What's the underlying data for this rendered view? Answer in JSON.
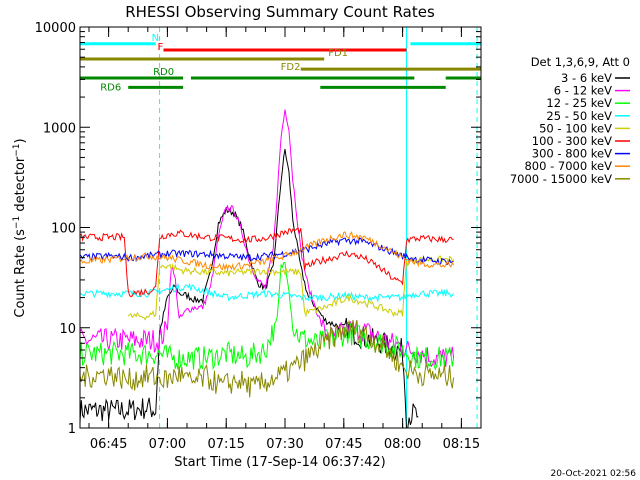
{
  "chart_data": {
    "type": "line",
    "title": "RHESSI Observing Summary Count Rates",
    "xlabel": "Start Time (17-Sep-14 06:37:42)",
    "ylabel": "Count Rate (s⁻¹ detector⁻¹)",
    "ylabel_parts": [
      "Count Rate (s",
      "−1",
      " detector",
      "−1",
      ")"
    ],
    "xaxis": {
      "ticks": [
        {
          "t": 45,
          "label": "06:45"
        },
        {
          "t": 60,
          "label": "07:00"
        },
        {
          "t": 75,
          "label": "07:15"
        },
        {
          "t": 90,
          "label": "07:30"
        },
        {
          "t": 105,
          "label": "07:45"
        },
        {
          "t": 120,
          "label": "08:00"
        },
        {
          "t": 135,
          "label": "08:15"
        }
      ],
      "range": [
        37.7,
        140
      ]
    },
    "yaxis": {
      "scale": "log",
      "range": [
        1,
        10000
      ],
      "ticks": [
        {
          "v": 1,
          "label": "1"
        },
        {
          "v": 10,
          "label": "10"
        },
        {
          "v": 100,
          "label": "100"
        },
        {
          "v": 1000,
          "label": "1000"
        },
        {
          "v": 10000,
          "label": "10000"
        }
      ]
    },
    "legend": {
      "placement": "right",
      "header": "Det 1,3,6,9, Att 0",
      "entries": [
        {
          "name": "3 - 6 keV",
          "color": "#000000"
        },
        {
          "name": "6 - 12 keV",
          "color": "#ff00ff"
        },
        {
          "name": "12 - 25 keV",
          "color": "#00ff00"
        },
        {
          "name": "25 - 50 keV",
          "color": "#00ffff"
        },
        {
          "name": "50 - 100 keV",
          "color": "#cccc00"
        },
        {
          "name": "100 - 300 keV",
          "color": "#ff0000"
        },
        {
          "name": "300 - 800 keV",
          "color": "#0000ff"
        },
        {
          "name": "800 - 7000 keV",
          "color": "#ff8800"
        },
        {
          "name": "7000 - 15000 keV",
          "color": "#888800"
        }
      ]
    },
    "flag_bars": [
      {
        "label": "N",
        "color": "#00ffff",
        "level": 6800,
        "segments": [
          [
            37.7,
            57
          ],
          [
            122,
            140
          ]
        ]
      },
      {
        "label": "F",
        "color": "#ff0000",
        "level": 5900,
        "segments": [
          [
            59,
            121
          ]
        ]
      },
      {
        "label": "FD1",
        "color": "#888800",
        "level": 4800,
        "segments": [
          [
            37.7,
            100
          ]
        ]
      },
      {
        "label": "FD2",
        "color": "#888800",
        "level": 3800,
        "segments": [
          [
            94,
            140
          ]
        ]
      },
      {
        "label": "RD0",
        "color": "#008800",
        "level": 3100,
        "segments": [
          [
            37.7,
            64
          ],
          [
            66,
            123
          ],
          [
            131,
            140
          ]
        ]
      },
      {
        "label": "RD6",
        "color": "#008800",
        "level": 2500,
        "segments": [
          [
            50,
            64
          ],
          [
            99,
            131
          ]
        ]
      }
    ],
    "vertical_markers": [
      {
        "t": 37.7,
        "style": "solid",
        "color": "#00ffff"
      },
      {
        "t": 58,
        "style": "dashed",
        "color": "#00ffff"
      },
      {
        "t": 121,
        "style": "solid",
        "color": "#00ffff"
      },
      {
        "t": 139,
        "style": "dashed",
        "color": "#00ffff"
      }
    ],
    "series": [
      {
        "name": "3 - 6 keV",
        "color": "#000000",
        "points": [
          [
            37.7,
            1.5
          ],
          [
            50,
            1.5
          ],
          [
            55,
            1.6
          ],
          [
            57,
            1.5
          ],
          [
            58,
            9
          ],
          [
            60,
            20
          ],
          [
            62,
            26
          ],
          [
            63,
            22
          ],
          [
            65,
            21
          ],
          [
            67,
            19
          ],
          [
            69,
            19
          ],
          [
            71,
            35
          ],
          [
            73,
            110
          ],
          [
            75,
            150
          ],
          [
            77,
            140
          ],
          [
            79,
            100
          ],
          [
            81,
            50
          ],
          [
            83,
            28
          ],
          [
            85,
            25
          ],
          [
            87,
            40
          ],
          [
            89,
            300
          ],
          [
            90,
            600
          ],
          [
            91,
            350
          ],
          [
            92,
            120
          ],
          [
            94,
            40
          ],
          [
            96,
            20
          ],
          [
            98,
            16
          ],
          [
            100,
            12
          ],
          [
            102,
            11
          ],
          [
            105,
            10
          ],
          [
            110,
            8
          ],
          [
            115,
            7
          ],
          [
            118,
            6
          ],
          [
            120,
            6
          ],
          [
            121,
            1.3
          ],
          [
            123,
            1.4
          ],
          [
            124,
            1.3
          ]
        ]
      },
      {
        "name": "6 - 12 keV",
        "color": "#ff00ff",
        "points": [
          [
            37.7,
            7.5
          ],
          [
            58,
            7.5
          ],
          [
            60,
            10
          ],
          [
            61,
            42
          ],
          [
            62,
            30
          ],
          [
            63,
            12
          ],
          [
            65,
            15
          ],
          [
            67,
            16
          ],
          [
            69,
            16
          ],
          [
            71,
            25
          ],
          [
            73,
            80
          ],
          [
            75,
            160
          ],
          [
            77,
            150
          ],
          [
            79,
            90
          ],
          [
            81,
            45
          ],
          [
            83,
            30
          ],
          [
            85,
            25
          ],
          [
            87,
            60
          ],
          [
            89,
            800
          ],
          [
            90,
            1500
          ],
          [
            91,
            1000
          ],
          [
            92,
            300
          ],
          [
            94,
            60
          ],
          [
            96,
            25
          ],
          [
            98,
            15
          ],
          [
            100,
            9
          ],
          [
            102,
            8
          ],
          [
            105,
            9
          ],
          [
            108,
            10
          ],
          [
            111,
            9
          ],
          [
            114,
            8
          ],
          [
            117,
            7
          ],
          [
            120,
            6.5
          ],
          [
            121,
            6
          ],
          [
            123,
            6
          ],
          [
            125,
            5.5
          ],
          [
            128,
            5
          ],
          [
            131,
            5
          ],
          [
            133,
            5
          ]
        ]
      },
      {
        "name": "12 - 25 keV",
        "color": "#00ff00",
        "points": [
          [
            37.7,
            5.5
          ],
          [
            55,
            5.5
          ],
          [
            58,
            5.5
          ],
          [
            61,
            5
          ],
          [
            63,
            5
          ],
          [
            70,
            5
          ],
          [
            75,
            5.5
          ],
          [
            80,
            5
          ],
          [
            85,
            6
          ],
          [
            88,
            12
          ],
          [
            89,
            40
          ],
          [
            90,
            45
          ],
          [
            91,
            25
          ],
          [
            92,
            10
          ],
          [
            94,
            8
          ],
          [
            98,
            7
          ],
          [
            103,
            8
          ],
          [
            106,
            9
          ],
          [
            110,
            8
          ],
          [
            115,
            7
          ],
          [
            120,
            6
          ],
          [
            124,
            5
          ],
          [
            128,
            5
          ],
          [
            133,
            5
          ]
        ]
      },
      {
        "name": "25 - 50 keV",
        "color": "#00ffff",
        "points": [
          [
            37.7,
            22
          ],
          [
            49,
            22
          ],
          [
            50,
            22
          ],
          [
            55,
            22
          ],
          [
            60,
            24
          ],
          [
            65,
            26
          ],
          [
            70,
            23
          ],
          [
            75,
            20
          ],
          [
            80,
            21
          ],
          [
            85,
            22
          ],
          [
            90,
            21
          ],
          [
            95,
            20
          ],
          [
            100,
            20
          ],
          [
            105,
            21
          ],
          [
            110,
            20
          ],
          [
            115,
            20
          ],
          [
            120,
            20
          ],
          [
            121,
            21
          ],
          [
            124,
            22
          ],
          [
            130,
            22
          ],
          [
            133,
            22
          ]
        ]
      },
      {
        "name": "50 - 100 keV",
        "color": "#cccc00",
        "points": [
          [
            50,
            13
          ],
          [
            55,
            13
          ],
          [
            57,
            14
          ],
          [
            58,
            40
          ],
          [
            60,
            42
          ],
          [
            63,
            38
          ],
          [
            65,
            37
          ],
          [
            70,
            36
          ],
          [
            75,
            35
          ],
          [
            80,
            36
          ],
          [
            85,
            37
          ],
          [
            90,
            36
          ],
          [
            94,
            36
          ],
          [
            95,
            14
          ],
          [
            98,
            15
          ],
          [
            102,
            17
          ],
          [
            106,
            20
          ],
          [
            110,
            18
          ],
          [
            114,
            16
          ],
          [
            118,
            14
          ],
          [
            120,
            14
          ],
          [
            121,
            45
          ],
          [
            124,
            48
          ],
          [
            130,
            48
          ],
          [
            133,
            48
          ]
        ]
      },
      {
        "name": "100 - 300 keV",
        "color": "#ff0000",
        "points": [
          [
            37.7,
            80
          ],
          [
            45,
            80
          ],
          [
            49,
            80
          ],
          [
            50,
            22
          ],
          [
            55,
            23
          ],
          [
            57,
            25
          ],
          [
            58,
            80
          ],
          [
            60,
            85
          ],
          [
            63,
            88
          ],
          [
            65,
            85
          ],
          [
            70,
            80
          ],
          [
            75,
            78
          ],
          [
            80,
            75
          ],
          [
            85,
            78
          ],
          [
            90,
            90
          ],
          [
            94,
            95
          ],
          [
            95,
            40
          ],
          [
            98,
            45
          ],
          [
            102,
            50
          ],
          [
            106,
            55
          ],
          [
            110,
            50
          ],
          [
            114,
            40
          ],
          [
            118,
            30
          ],
          [
            120,
            28
          ],
          [
            121,
            75
          ],
          [
            124,
            78
          ],
          [
            130,
            76
          ],
          [
            133,
            76
          ]
        ]
      },
      {
        "name": "300 - 800 keV",
        "color": "#0000ff",
        "points": [
          [
            37.7,
            50
          ],
          [
            45,
            52
          ],
          [
            50,
            50
          ],
          [
            55,
            52
          ],
          [
            60,
            55
          ],
          [
            65,
            55
          ],
          [
            70,
            54
          ],
          [
            75,
            52
          ],
          [
            80,
            50
          ],
          [
            85,
            52
          ],
          [
            90,
            55
          ],
          [
            95,
            60
          ],
          [
            100,
            68
          ],
          [
            105,
            75
          ],
          [
            110,
            72
          ],
          [
            115,
            62
          ],
          [
            120,
            52
          ],
          [
            124,
            48
          ],
          [
            130,
            46
          ],
          [
            133,
            46
          ]
        ]
      },
      {
        "name": "800 - 7000 keV",
        "color": "#ff8800",
        "points": [
          [
            37.7,
            45
          ],
          [
            45,
            48
          ],
          [
            50,
            50
          ],
          [
            55,
            52
          ],
          [
            60,
            50
          ],
          [
            65,
            46
          ],
          [
            70,
            42
          ],
          [
            75,
            40
          ],
          [
            80,
            42
          ],
          [
            85,
            46
          ],
          [
            90,
            52
          ],
          [
            95,
            62
          ],
          [
            100,
            75
          ],
          [
            105,
            85
          ],
          [
            110,
            80
          ],
          [
            115,
            65
          ],
          [
            120,
            50
          ],
          [
            124,
            44
          ],
          [
            130,
            42
          ],
          [
            133,
            42
          ]
        ]
      },
      {
        "name": "7000 - 15000 keV",
        "color": "#888800",
        "points": [
          [
            37.7,
            3.2
          ],
          [
            45,
            3.5
          ],
          [
            50,
            3.0
          ],
          [
            55,
            3.3
          ],
          [
            60,
            3.0
          ],
          [
            63,
            3.5
          ],
          [
            66,
            2.8
          ],
          [
            70,
            3.2
          ],
          [
            74,
            2.6
          ],
          [
            78,
            3.0
          ],
          [
            82,
            2.5
          ],
          [
            86,
            3.0
          ],
          [
            90,
            3.5
          ],
          [
            94,
            4.5
          ],
          [
            98,
            6
          ],
          [
            102,
            8
          ],
          [
            106,
            10
          ],
          [
            110,
            9
          ],
          [
            114,
            7
          ],
          [
            118,
            5
          ],
          [
            120,
            4
          ],
          [
            124,
            3.5
          ],
          [
            130,
            3.3
          ],
          [
            133,
            3.2
          ]
        ]
      }
    ]
  },
  "timestamp": "20-Oct-2021 02:56"
}
